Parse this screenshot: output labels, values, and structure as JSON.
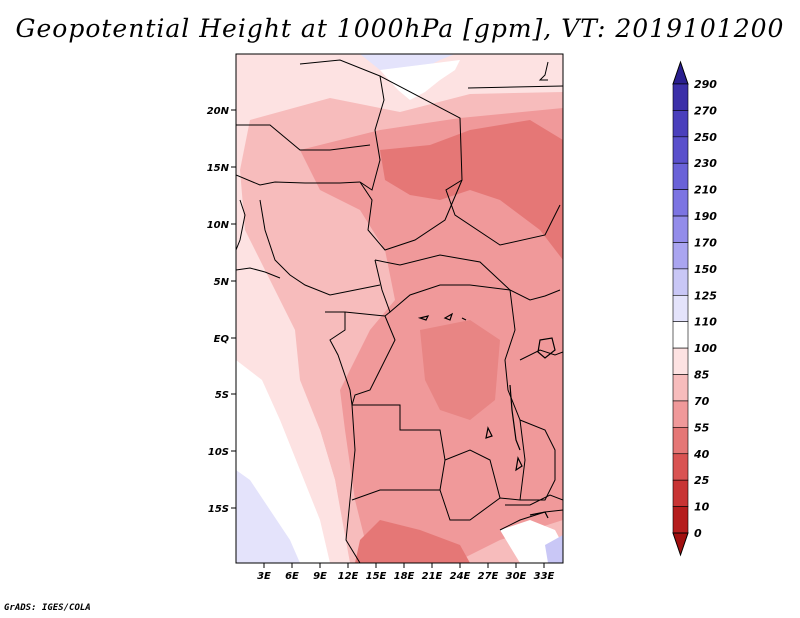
{
  "title": "Geopotential Height at 1000hPa [gpm], VT: 2019101200",
  "credit": "GrADS: IGES/COLA",
  "map": {
    "lat_labels": [
      "20N",
      "15N",
      "10N",
      "5N",
      "EQ",
      "5S",
      "10S",
      "15S"
    ],
    "lon_labels": [
      "3E",
      "6E",
      "9E",
      "12E",
      "15E",
      "18E",
      "21E",
      "24E",
      "27E",
      "30E",
      "33E"
    ]
  },
  "colorbar": {
    "labels": [
      "290",
      "270",
      "250",
      "230",
      "210",
      "190",
      "170",
      "150",
      "125",
      "110",
      "100",
      "85",
      "70",
      "55",
      "40",
      "25",
      "10",
      "0"
    ],
    "colors": [
      "#2a1f8f",
      "#3b2fa8",
      "#4a3fbc",
      "#5a50cc",
      "#6a62d8",
      "#7c74e2",
      "#938cea",
      "#aaa5f0",
      "#c9c7f6",
      "#e4e3fb",
      "#ffffff",
      "#fde2e2",
      "#f7bcbc",
      "#f0999a",
      "#e57776",
      "#d95352",
      "#c83434",
      "#b51d1d",
      "#a10f0f"
    ]
  }
}
